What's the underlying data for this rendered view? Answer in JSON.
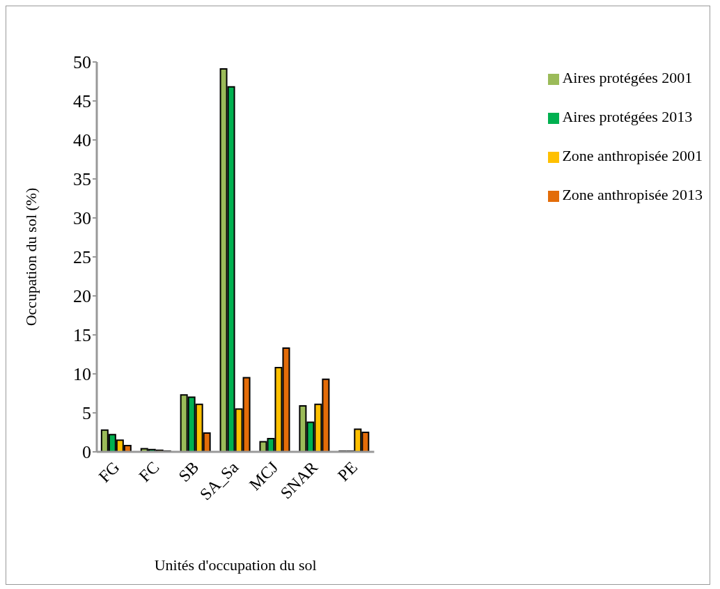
{
  "chart_data": {
    "type": "bar",
    "xlabel": "Unités d'occupation du sol",
    "ylabel": "Occupation du sol (%)",
    "categories": [
      "FG",
      "FC",
      "SB",
      "SA_Sa",
      "MCJ",
      "SNAR",
      "PE"
    ],
    "series": [
      {
        "name": "Aires protégées 2001",
        "color": "#9bbb59",
        "values": [
          2.8,
          0.4,
          7.3,
          49.1,
          1.3,
          5.9,
          0.1
        ]
      },
      {
        "name": "Aires protégées 2013",
        "color": "#00b050",
        "values": [
          2.2,
          0.3,
          7.0,
          46.8,
          1.7,
          3.8,
          0.1
        ]
      },
      {
        "name": "Zone anthropisée 2001",
        "color": "#ffc000",
        "values": [
          1.5,
          0.2,
          6.1,
          5.5,
          10.8,
          6.1,
          2.9
        ]
      },
      {
        "name": "Zone anthropisée 2013",
        "color": "#e36c09",
        "values": [
          0.8,
          0.1,
          2.4,
          9.5,
          13.3,
          9.3,
          2.5
        ]
      }
    ],
    "ylim": [
      0,
      50
    ],
    "yticks": [
      0,
      5,
      10,
      15,
      20,
      25,
      30,
      35,
      40,
      45,
      50
    ],
    "grid": false,
    "legend": "top right"
  }
}
